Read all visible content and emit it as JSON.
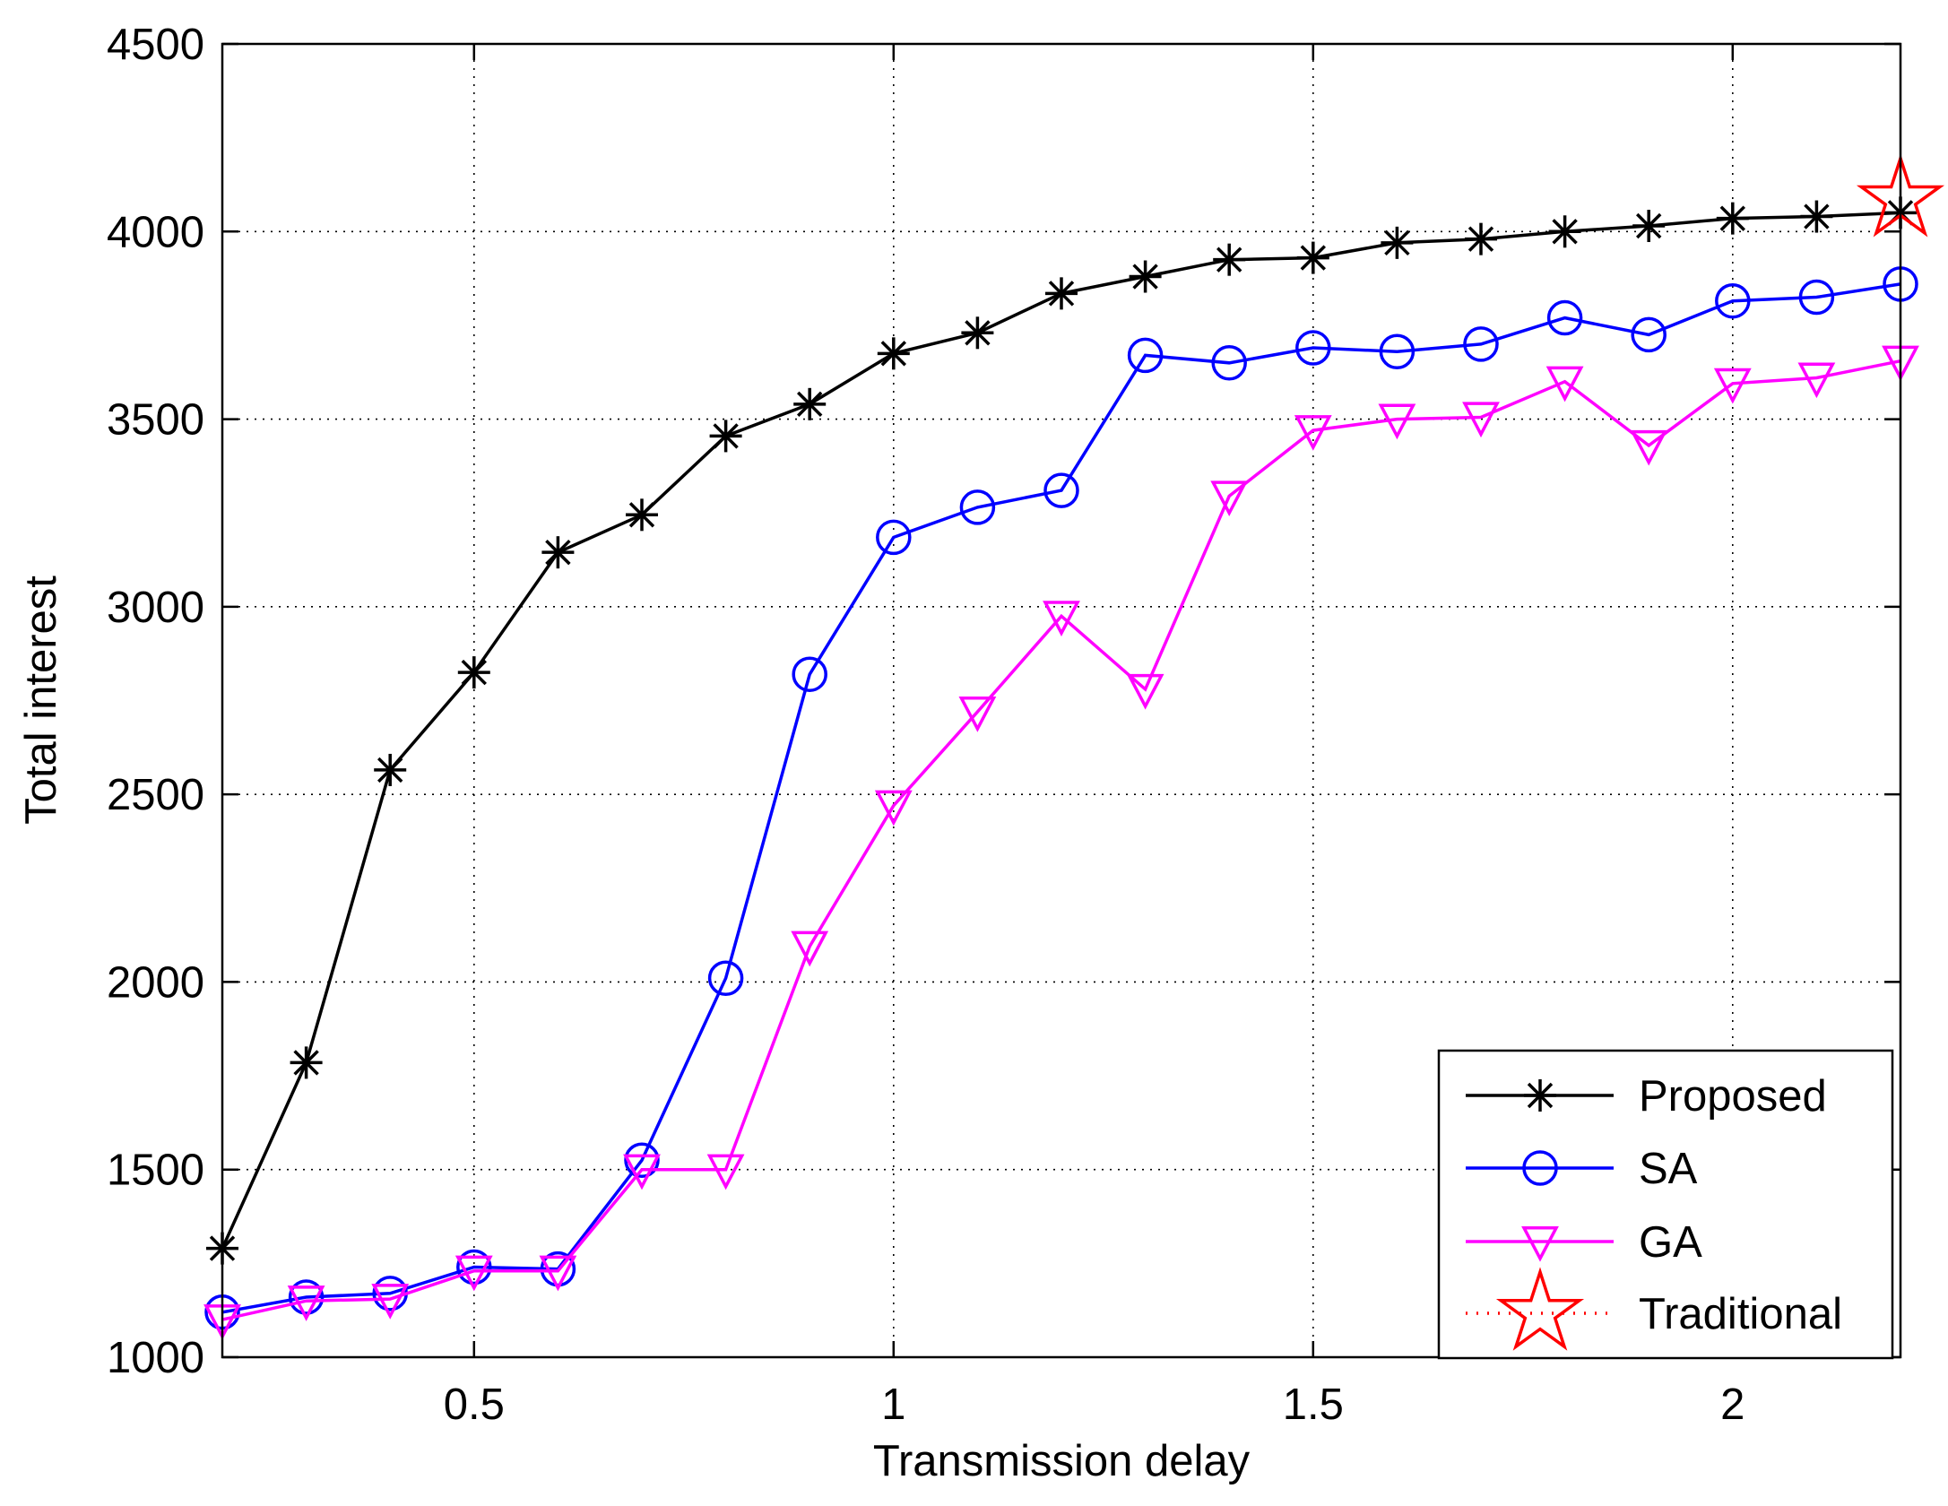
{
  "chart_data": {
    "type": "line",
    "title": "",
    "xlabel": "Transmission delay",
    "ylabel": "Total interest",
    "xlim": [
      0.2,
      2.2
    ],
    "ylim": [
      1000,
      4500
    ],
    "grid": true,
    "legend_position": "bottom-right",
    "x_ticks": [
      0.5,
      1,
      1.5,
      2
    ],
    "x_tick_labels": [
      "0.5",
      "1",
      "1.5",
      "2"
    ],
    "y_ticks": [
      1000,
      1500,
      2000,
      2500,
      3000,
      3500,
      4000,
      4500
    ],
    "y_tick_labels": [
      "1000",
      "1500",
      "2000",
      "2500",
      "3000",
      "3500",
      "4000",
      "4500"
    ],
    "x": [
      0.2,
      0.3,
      0.4,
      0.5,
      0.6,
      0.7,
      0.8,
      0.9,
      1.0,
      1.1,
      1.2,
      1.3,
      1.4,
      1.5,
      1.6,
      1.7,
      1.8,
      1.9,
      2.0,
      2.1,
      2.2
    ],
    "series": [
      {
        "name": "Proposed",
        "color": "#000000",
        "marker": "asterisk",
        "line": "solid",
        "values": [
          1290,
          1785,
          2565,
          2825,
          3145,
          3245,
          3455,
          3540,
          3675,
          3730,
          3835,
          3880,
          3925,
          3930,
          3970,
          3980,
          4000,
          4015,
          4035,
          4040,
          4050
        ]
      },
      {
        "name": "SA",
        "color": "#0000ff",
        "marker": "circle",
        "line": "solid",
        "values": [
          1120,
          1160,
          1170,
          1240,
          1235,
          1525,
          2010,
          2820,
          3185,
          3265,
          3310,
          3670,
          3650,
          3690,
          3680,
          3700,
          3770,
          3725,
          3815,
          3825,
          3860
        ]
      },
      {
        "name": "GA",
        "color": "#ff00ff",
        "marker": "triangle-down",
        "line": "solid",
        "values": [
          1100,
          1150,
          1155,
          1230,
          1230,
          1500,
          1500,
          2095,
          2470,
          2720,
          2975,
          2780,
          3295,
          3470,
          3500,
          3505,
          3600,
          3430,
          3595,
          3610,
          3655
        ]
      },
      {
        "name": "Traditional",
        "color": "#ff0000",
        "marker": "pentagram",
        "line": "dotted",
        "x": [
          2.2
        ],
        "values": [
          4085
        ]
      }
    ]
  }
}
